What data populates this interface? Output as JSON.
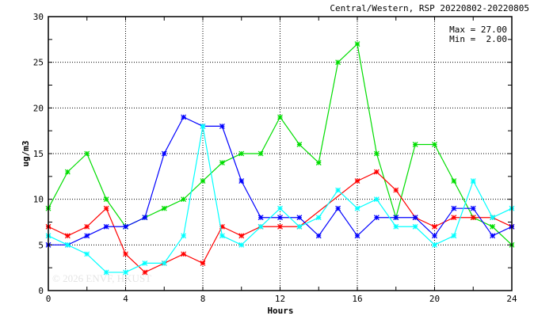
{
  "chart_data": {
    "type": "line",
    "title": "Central/Western, RSP 20220802-20220805",
    "xlabel": "Hours",
    "ylabel": "ug/m3",
    "xlim": [
      0,
      24
    ],
    "ylim": [
      0,
      30
    ],
    "xticks": [
      0,
      4,
      8,
      12,
      16,
      20,
      24
    ],
    "yticks": [
      0,
      5,
      10,
      15,
      20,
      25,
      30
    ],
    "grid": true,
    "annotations": {
      "max": "Max = 27.00",
      "min": "Min =  2.00"
    },
    "watermark": "© 2026  ENVF, HKUST",
    "x": [
      0,
      1,
      2,
      3,
      4,
      5,
      6,
      7,
      8,
      9,
      10,
      11,
      12,
      13,
      14,
      15,
      16,
      17,
      18,
      19,
      20,
      21,
      22,
      23,
      24
    ],
    "series": [
      {
        "name": "green",
        "color": "#00dd00",
        "values": [
          9,
          13,
          15,
          10,
          7,
          8,
          9,
          10,
          12,
          14,
          15,
          15,
          19,
          16,
          14,
          25,
          27,
          15,
          8,
          16,
          16,
          12,
          8,
          7,
          5
        ]
      },
      {
        "name": "red",
        "color": "#ff0000",
        "values": [
          7,
          6,
          7,
          9,
          4,
          2,
          3,
          4,
          3,
          7,
          6,
          7,
          7,
          7,
          null,
          null,
          12,
          13,
          11,
          8,
          7,
          8,
          8,
          8,
          7
        ]
      },
      {
        "name": "blue",
        "color": "#0000ff",
        "values": [
          5,
          5,
          6,
          7,
          7,
          8,
          15,
          19,
          18,
          18,
          12,
          8,
          8,
          8,
          6,
          9,
          6,
          8,
          8,
          8,
          6,
          9,
          9,
          6,
          7
        ]
      },
      {
        "name": "cyan",
        "color": "#00ffff",
        "values": [
          6,
          5,
          4,
          2,
          2,
          3,
          3,
          6,
          18,
          6,
          5,
          7,
          9,
          7,
          8,
          11,
          9,
          10,
          7,
          7,
          5,
          6,
          12,
          8,
          9
        ]
      }
    ]
  }
}
